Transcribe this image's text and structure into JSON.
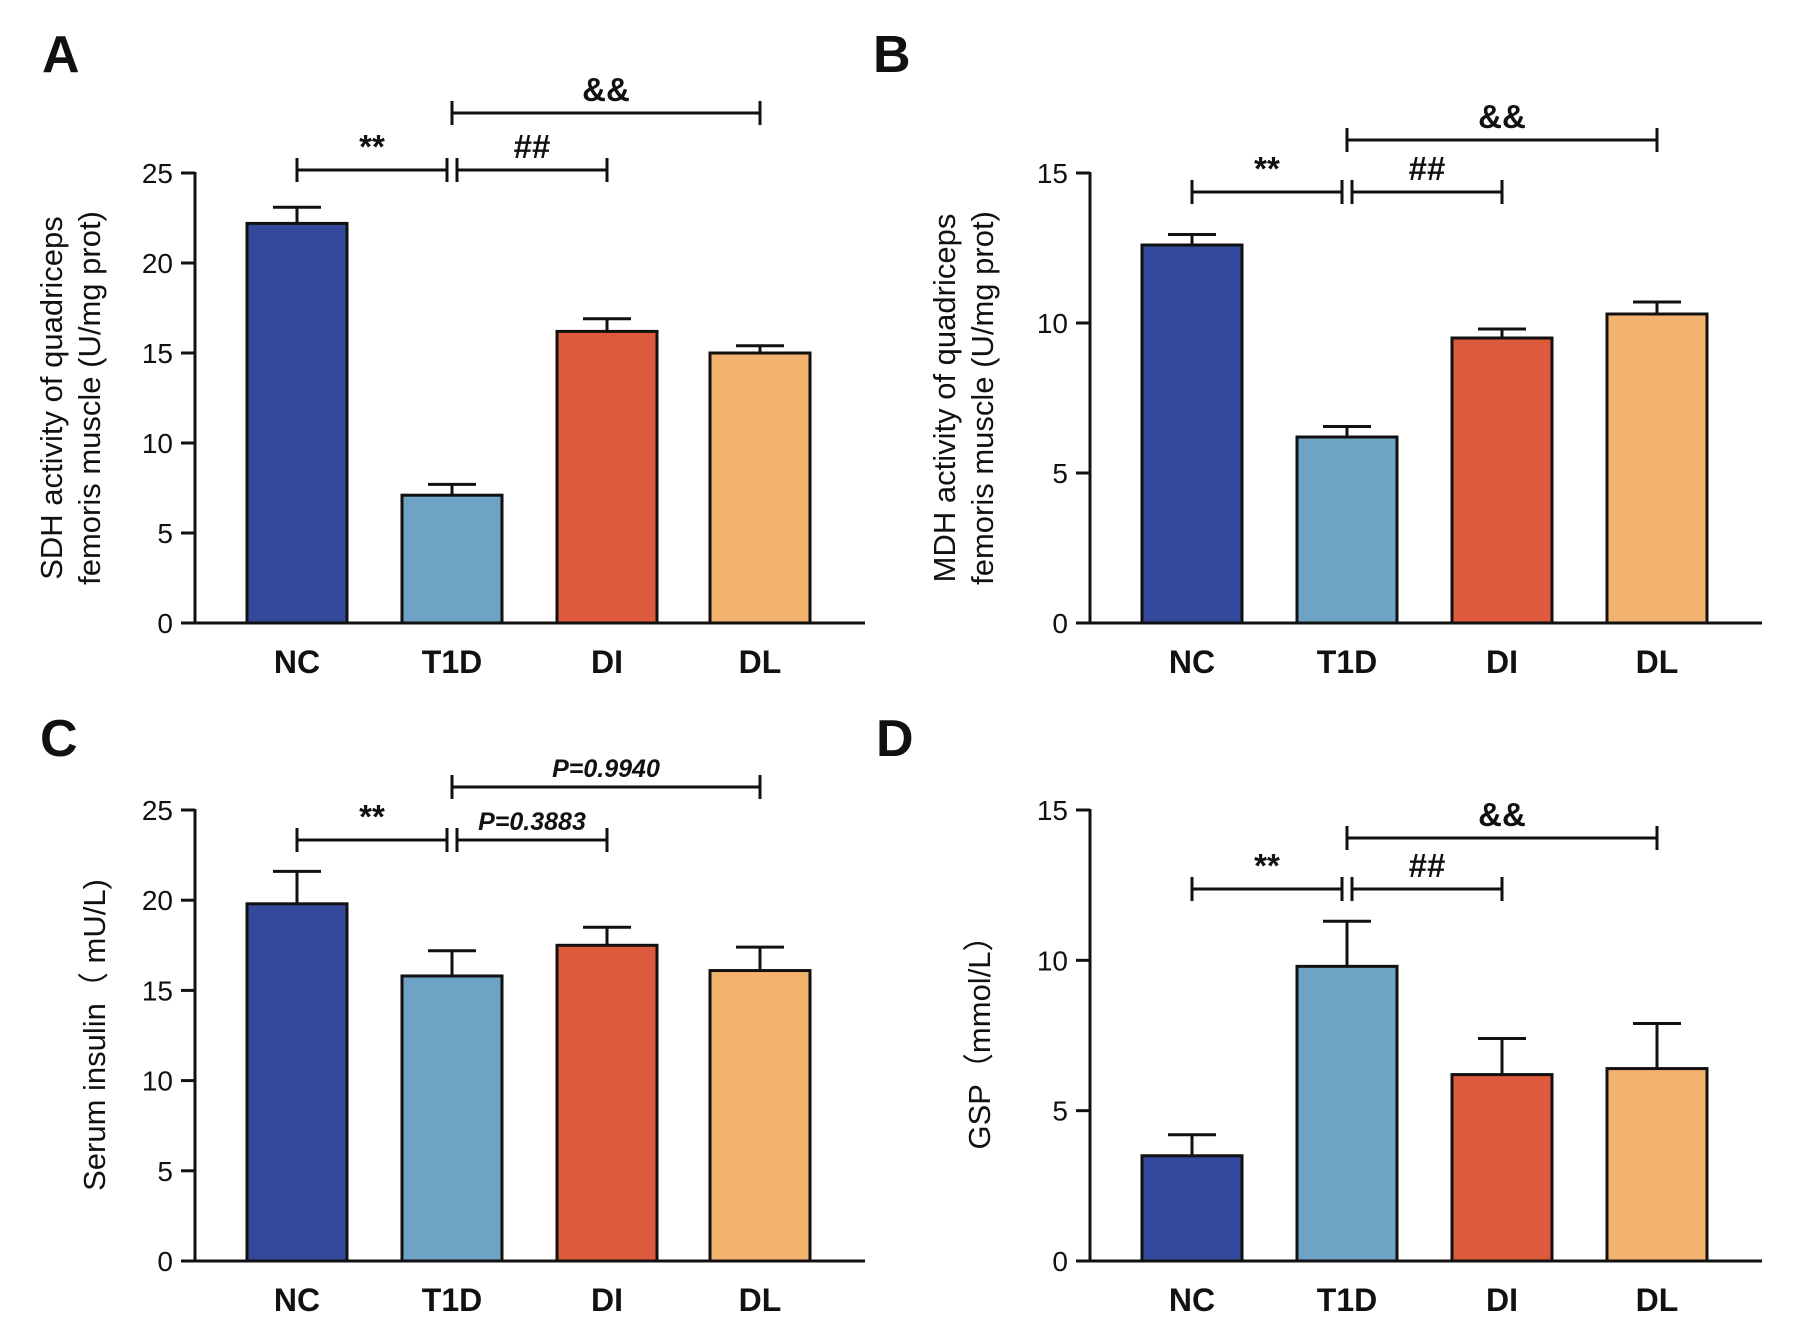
{
  "chart_data": [
    {
      "panel": "A",
      "type": "bar",
      "categories": [
        "NC",
        "T1D",
        "DI",
        "DL"
      ],
      "values": [
        22.2,
        7.1,
        16.2,
        15.0
      ],
      "errors": [
        0.9,
        0.6,
        0.7,
        0.4
      ],
      "colors": [
        "#34499b",
        "#6fa3c6",
        "#de5a3c",
        "#f4b26f"
      ],
      "ylabel": "SDH activity of quadriceps femoris muscle (U/mg prot)",
      "ylim": [
        0,
        25
      ],
      "yticks": [
        0,
        5,
        10,
        15,
        20,
        25
      ],
      "comparisons": [
        {
          "from": 0,
          "to": 1,
          "label": "**",
          "level": 0
        },
        {
          "from": 1,
          "to": 2,
          "label": "##",
          "level": 0
        },
        {
          "from": 1,
          "to": 3,
          "label": "&&",
          "level": 1
        }
      ]
    },
    {
      "panel": "B",
      "type": "bar",
      "categories": [
        "NC",
        "T1D",
        "DI",
        "DL"
      ],
      "values": [
        12.6,
        6.2,
        9.5,
        10.3
      ],
      "errors": [
        0.35,
        0.35,
        0.3,
        0.4
      ],
      "colors": [
        "#34499b",
        "#6fa3c6",
        "#de5a3c",
        "#f4b26f"
      ],
      "ylabel": "MDH activity of quadriceps femoris muscle (U/mg prot)",
      "ylim": [
        0,
        15
      ],
      "yticks": [
        0,
        5,
        10,
        15
      ],
      "comparisons": [
        {
          "from": 0,
          "to": 1,
          "label": "**",
          "level": 0
        },
        {
          "from": 1,
          "to": 2,
          "label": "##",
          "level": 0
        },
        {
          "from": 1,
          "to": 3,
          "label": "&&",
          "level": 1
        }
      ]
    },
    {
      "panel": "C",
      "type": "bar",
      "categories": [
        "NC",
        "T1D",
        "DI",
        "DL"
      ],
      "values": [
        19.8,
        15.8,
        17.5,
        16.1
      ],
      "errors": [
        1.8,
        1.4,
        1.0,
        1.3
      ],
      "colors": [
        "#34499b",
        "#6fa3c6",
        "#de5a3c",
        "#f4b26f"
      ],
      "ylabel": "Serum insulin（ mU/L)",
      "ylim": [
        0,
        25
      ],
      "yticks": [
        0,
        5,
        10,
        15,
        20,
        25
      ],
      "comparisons": [
        {
          "from": 0,
          "to": 1,
          "label": "**",
          "level": 0
        },
        {
          "from": 1,
          "to": 2,
          "label": "P=0.3883",
          "level": 0
        },
        {
          "from": 1,
          "to": 3,
          "label": "P=0.9940",
          "level": 1
        }
      ]
    },
    {
      "panel": "D",
      "type": "bar",
      "categories": [
        "NC",
        "T1D",
        "DI",
        "DL"
      ],
      "values": [
        3.5,
        9.8,
        6.2,
        6.4
      ],
      "errors": [
        0.7,
        1.5,
        1.2,
        1.5
      ],
      "colors": [
        "#34499b",
        "#6fa3c6",
        "#de5a3c",
        "#f4b26f"
      ],
      "ylabel": "GSP（mmol/L）",
      "ylim": [
        0,
        15
      ],
      "yticks": [
        0,
        5,
        10,
        15
      ],
      "comparisons": [
        {
          "from": 0,
          "to": 1,
          "label": "**",
          "level": 0
        },
        {
          "from": 1,
          "to": 2,
          "label": "##",
          "level": 0
        },
        {
          "from": 1,
          "to": 3,
          "label": "&&",
          "level": 1
        }
      ]
    }
  ]
}
